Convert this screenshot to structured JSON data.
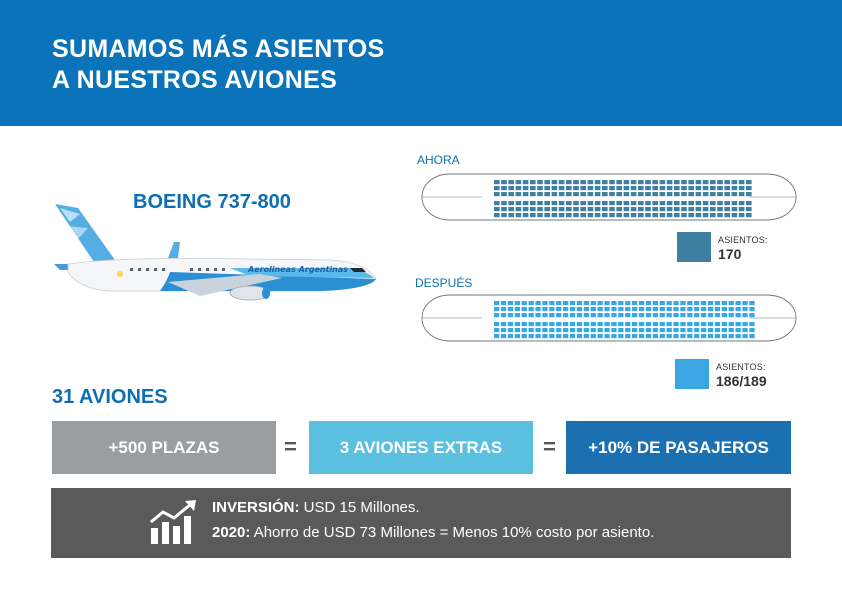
{
  "header": {
    "title": "SUMAMOS MÁS ASIENTOS\nA NUESTROS AVIONES",
    "background_color": "#0a73b9"
  },
  "aircraft": {
    "model": "BOEING 737-800",
    "livery_text": "Aerolineas Argentinas"
  },
  "seating": {
    "before": {
      "label": "AHORA",
      "caption": "ASIENTOS:",
      "count": "170",
      "color": "#3f7fa1"
    },
    "after": {
      "label": "DESPUÉS",
      "caption": "ASIENTOS:",
      "count": "186/189",
      "color": "#3aa7e3"
    }
  },
  "fleet": {
    "title": "31 AVIONES",
    "equation": [
      {
        "label": "+500 PLAZAS",
        "color": "#9a9ea1"
      },
      {
        "label": "3 AVIONES EXTRAS",
        "color": "#5bbfe0"
      },
      {
        "label": "+10% DE PASAJEROS",
        "color": "#1a70b0"
      }
    ],
    "operator": "="
  },
  "investment": {
    "icon": "growth-chart-icon",
    "line1_label": "INVERSIÓN:",
    "line1_text": " USD 15 Millones.",
    "line2_label": "2020:",
    "line2_text": " Ahorro de USD 73 Millones = Menos 10% costo por asiento."
  }
}
